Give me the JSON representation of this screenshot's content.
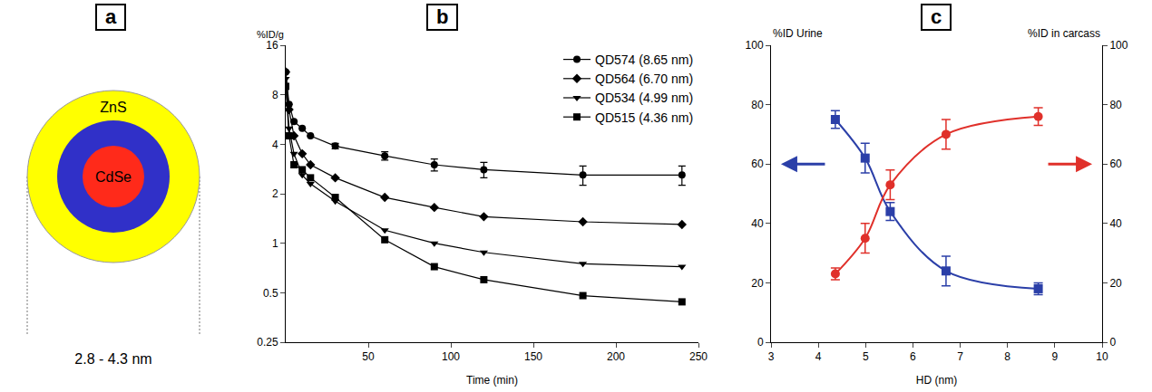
{
  "diagram": {
    "panel": "a",
    "outer": {
      "label": "ZnS",
      "color": "#ffff00"
    },
    "middle": {
      "color": "#3030c8"
    },
    "core": {
      "label": "CdSe",
      "color": "#ff2a1a"
    },
    "caption": "2.8 - 4.3 nm"
  },
  "chart_data": [
    {
      "panel": "b",
      "type": "line",
      "y_label": "%ID/g",
      "x_label": "Time (min)",
      "log": "y",
      "xlim": [
        0,
        250
      ],
      "xticks": [
        50,
        100,
        150,
        200,
        250
      ],
      "ylim": [
        0.25,
        16
      ],
      "yticks": [
        0.25,
        0.5,
        1,
        2,
        4,
        8,
        16
      ],
      "legend": "top-right",
      "line_style": "solid",
      "x": [
        0,
        2,
        5,
        10,
        15,
        30,
        60,
        90,
        120,
        180,
        240
      ],
      "series": [
        {
          "name": "QD574 (8.65 nm)",
          "color": "#000000",
          "marker": "circle",
          "values": [
            11,
            7,
            5.5,
            5,
            4.5,
            3.9,
            3.4,
            3.0,
            2.8,
            2.6,
            2.6
          ],
          "errors": [
            0,
            0,
            0,
            0,
            0,
            0.15,
            0.2,
            0.25,
            0.3,
            0.35,
            0.35
          ]
        },
        {
          "name": "QD564 (6.70 nm)",
          "color": "#000000",
          "marker": "diamond",
          "values": [
            11,
            6.5,
            4.5,
            3.5,
            3.0,
            2.5,
            1.9,
            1.65,
            1.45,
            1.35,
            1.3
          ]
        },
        {
          "name": "QD534 (4.99 nm)",
          "color": "#000000",
          "marker": "triangle-down",
          "values": [
            10,
            5,
            3.5,
            2.6,
            2.3,
            1.8,
            1.2,
            1.0,
            0.88,
            0.75,
            0.72
          ]
        },
        {
          "name": "QD515 (4.36 nm)",
          "color": "#000000",
          "marker": "square",
          "values": [
            9,
            4.5,
            3.0,
            2.8,
            2.5,
            1.9,
            1.05,
            0.72,
            0.6,
            0.48,
            0.44
          ]
        }
      ]
    },
    {
      "panel": "c",
      "type": "line",
      "x_label": "HD (nm)",
      "xlim": [
        3,
        10
      ],
      "xticks": [
        3,
        4,
        5,
        6,
        7,
        8,
        9,
        10
      ],
      "ylim": [
        0,
        100
      ],
      "yticks": [
        0,
        20,
        40,
        60,
        80,
        100
      ],
      "y2lim": [
        0,
        100
      ],
      "y2ticks": [
        0,
        20,
        40,
        60,
        80,
        100
      ],
      "x": [
        4.36,
        4.99,
        5.52,
        6.7,
        8.65
      ],
      "series": [
        {
          "name": "%ID Urine",
          "color": "#2b3fa8",
          "marker": "square",
          "values": [
            75,
            62,
            44,
            24,
            18
          ],
          "errors": [
            3,
            5,
            3,
            5,
            2
          ]
        },
        {
          "name": "%ID in carcass",
          "color": "#e0302a",
          "marker": "circle",
          "axis": "y2",
          "values": [
            23,
            35,
            53,
            70,
            76
          ],
          "errors": [
            2,
            5,
            5,
            5,
            3
          ]
        }
      ]
    }
  ]
}
